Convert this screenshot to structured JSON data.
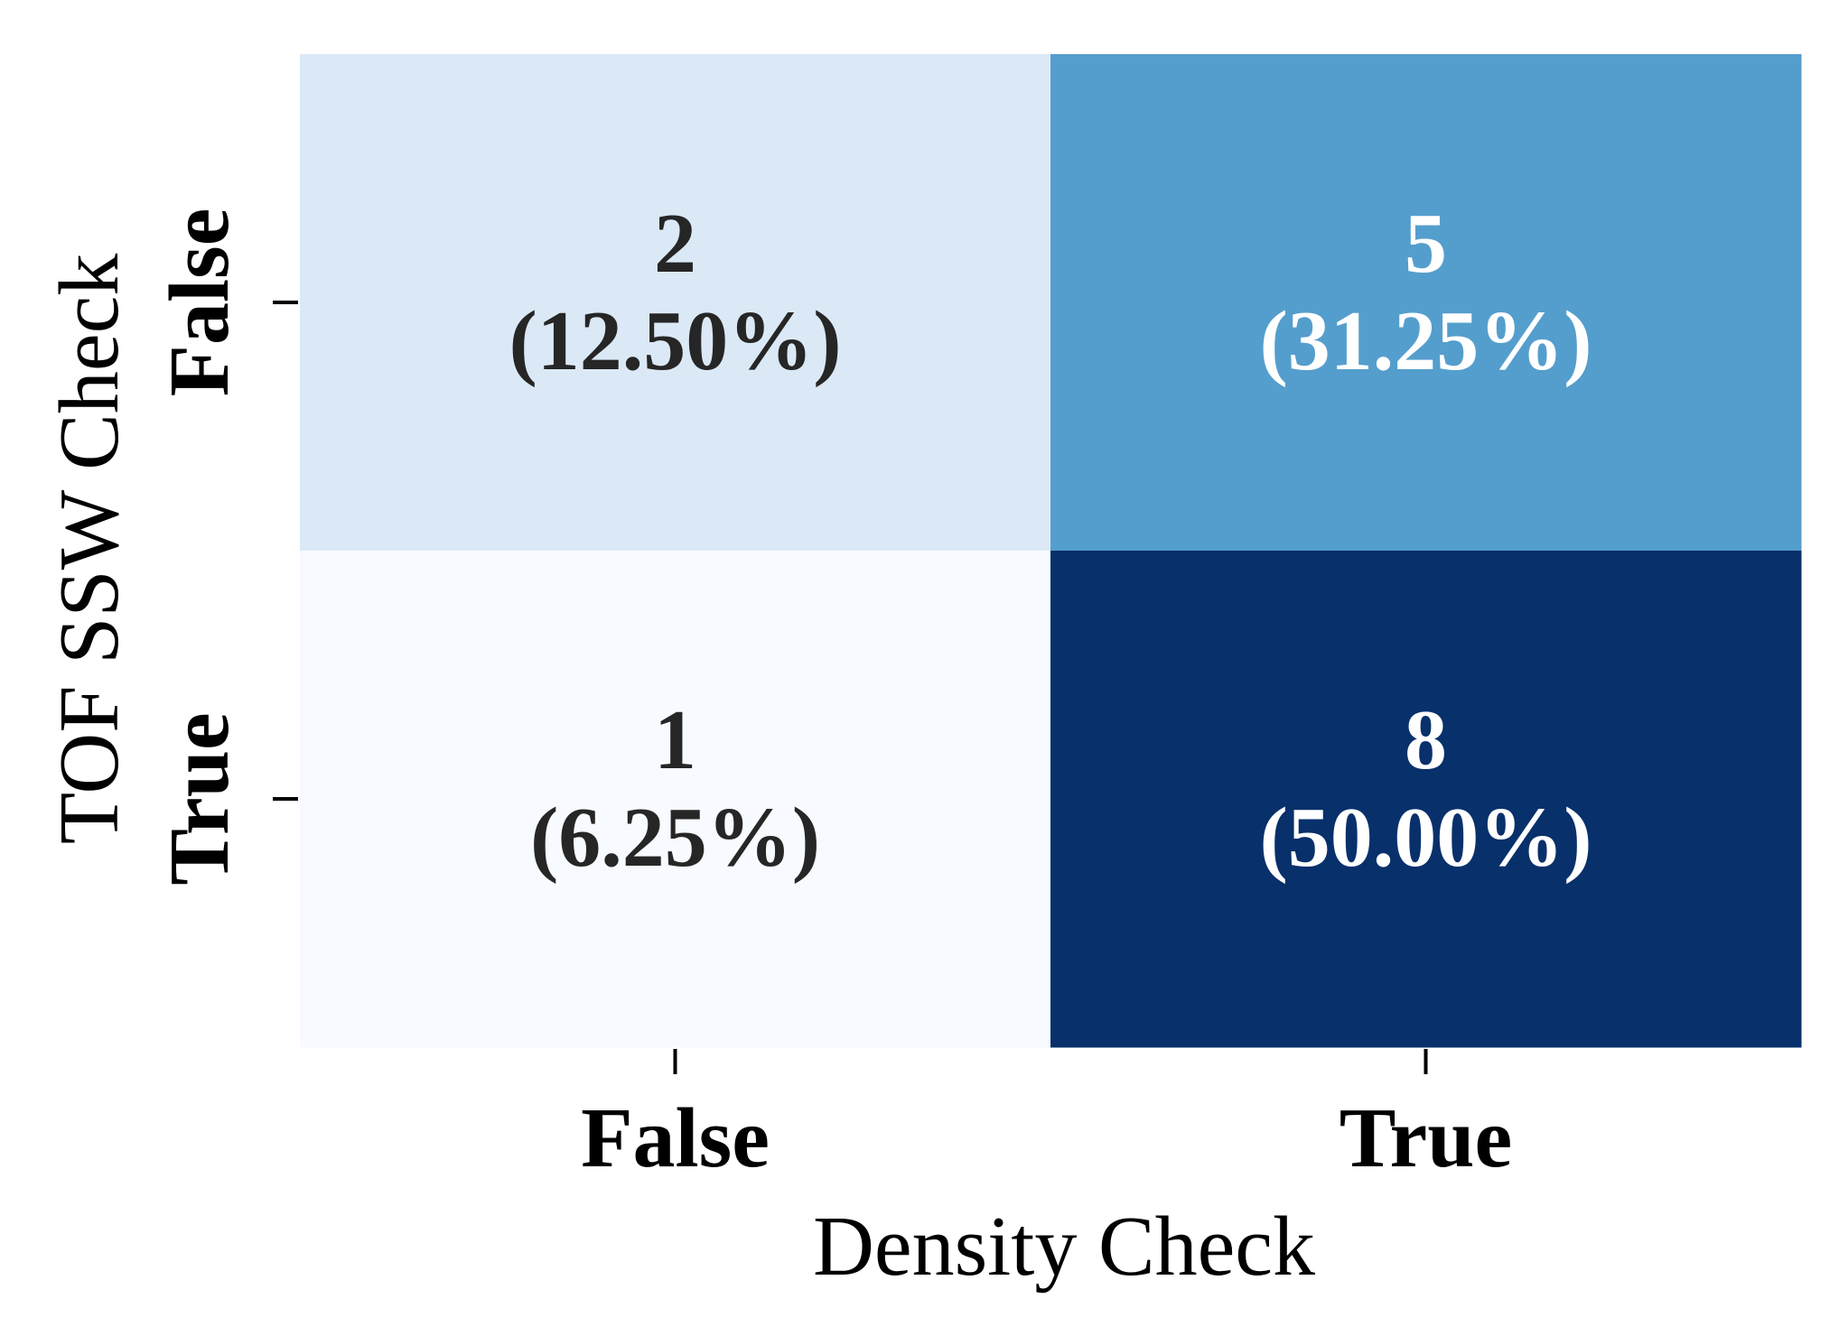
{
  "chart_data": {
    "type": "heatmap",
    "title": "",
    "xlabel": "Density Check",
    "ylabel": "TOF SSW Check",
    "x_categories": [
      "False",
      "True"
    ],
    "y_categories": [
      "False",
      "True"
    ],
    "values": [
      [
        2,
        5
      ],
      [
        1,
        8
      ]
    ],
    "value_labels": [
      [
        "2",
        "5"
      ],
      [
        "1",
        "8"
      ]
    ],
    "percent_labels": [
      [
        "(12.50%)",
        "(31.25%)"
      ],
      [
        "(6.25%)",
        "(50.00%)"
      ]
    ],
    "colormap": "Blues",
    "color_range": [
      1,
      8
    ],
    "colorbar": false,
    "grid": false,
    "colors": {
      "low": "#f7fbff",
      "high": "#08306b",
      "text_dark": "#262626",
      "text_light": "#ffffff"
    }
  }
}
